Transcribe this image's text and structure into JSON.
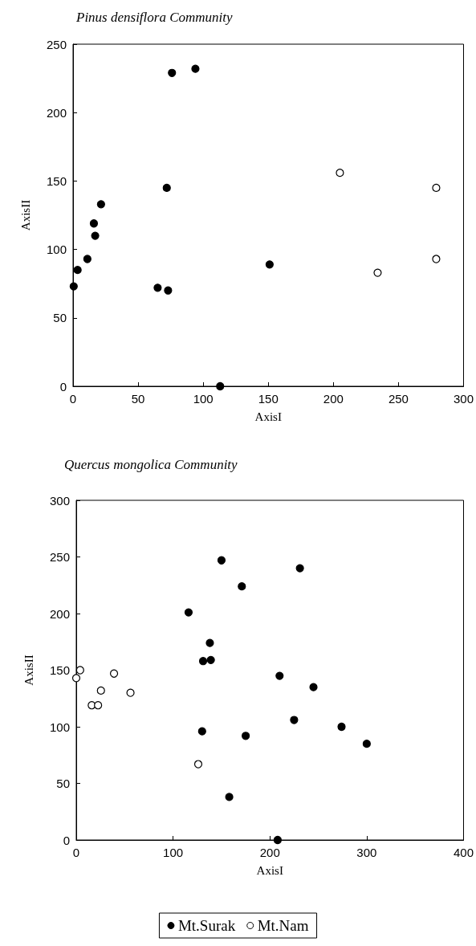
{
  "chart_data": [
    {
      "type": "scatter",
      "title": "Pinus densiflora Community",
      "xlabel": "AxisI",
      "ylabel": "AxisII",
      "xlim": [
        0,
        300
      ],
      "xticks": [
        0,
        50,
        100,
        150,
        200,
        250,
        300
      ],
      "ylim": [
        0,
        250
      ],
      "yticks": [
        0,
        50,
        100,
        150,
        200,
        250
      ],
      "grid": false,
      "legend": false,
      "marker": "circle",
      "series": [
        {
          "color": "#000000",
          "x": [
            0.5,
            3.5,
            11,
            16,
            17,
            21.5,
            65,
            73,
            72,
            76,
            94,
            113,
            151
          ],
          "values": [
            73,
            85,
            93,
            119,
            110,
            133,
            72,
            70,
            145,
            229,
            232,
            0,
            89
          ]
        },
        {
          "color": "#ffffff",
          "x": [
            205,
            279,
            234,
            279
          ],
          "values": [
            156,
            145,
            83,
            93
          ]
        }
      ]
    },
    {
      "type": "scatter",
      "title": "Quercus mongolica Community",
      "xlabel": "AxisI",
      "ylabel": "AxisII",
      "xlim": [
        0,
        400
      ],
      "xticks": [
        0,
        100,
        200,
        300,
        400
      ],
      "ylim": [
        0,
        300
      ],
      "yticks": [
        0,
        50,
        100,
        150,
        200,
        250,
        300
      ],
      "grid": false,
      "legend": "bottom",
      "marker": "circle",
      "series": [
        {
          "name": "Mt.Surak",
          "color": "#000000",
          "x": [
            150,
            231,
            171,
            116,
            138,
            131,
            139,
            210,
            245,
            225,
            274,
            300,
            130,
            175,
            158,
            208
          ],
          "values": [
            247,
            240,
            224,
            201,
            174,
            158,
            159,
            145,
            135,
            106,
            100,
            85,
            96,
            92,
            38,
            0
          ]
        },
        {
          "name": "Mt.Nam",
          "color": "#ffffff",
          "x": [
            0,
            4,
            16,
            22.5,
            25.5,
            39,
            56,
            126
          ],
          "values": [
            143,
            150,
            119,
            119,
            132,
            147,
            130,
            67
          ]
        }
      ]
    }
  ]
}
